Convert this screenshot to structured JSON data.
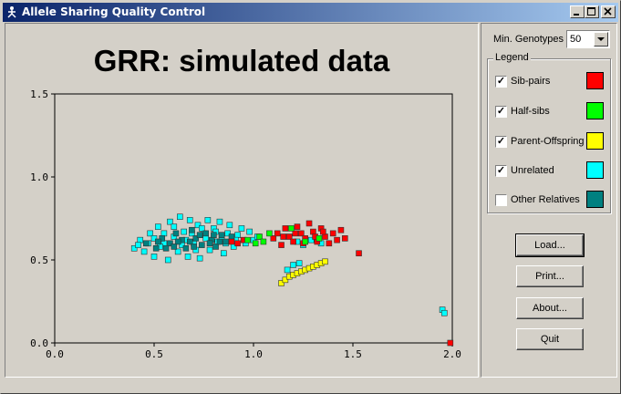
{
  "window": {
    "title": "Allele Sharing Quality Control"
  },
  "controls": {
    "min_genotypes_label": "Min. Genotypes",
    "min_genotypes_value": "50"
  },
  "legend": {
    "title": "Legend",
    "items": [
      {
        "label": "Sib-pairs",
        "checked": true,
        "color": "#ff0000"
      },
      {
        "label": "Half-sibs",
        "checked": true,
        "color": "#00ff00"
      },
      {
        "label": "Parent-Offspring",
        "checked": true,
        "color": "#ffff00"
      },
      {
        "label": "Unrelated",
        "checked": true,
        "color": "#00ffff"
      },
      {
        "label": "Other Relatives",
        "checked": false,
        "color": "#008080"
      }
    ]
  },
  "buttons": {
    "load": "Load...",
    "print": "Print...",
    "about": "About...",
    "quit": "Quit"
  },
  "chart_data": {
    "type": "scatter",
    "title": "GRR: simulated data",
    "xlabel": "",
    "ylabel": "",
    "xlim": [
      0,
      2.0
    ],
    "ylim": [
      0,
      1.5
    ],
    "xticks": [
      "0.0",
      "0.5",
      "1.0",
      "1.5",
      "2.0"
    ],
    "yticks": [
      "0.0",
      "0.5",
      "1.0",
      "1.5"
    ],
    "grid": false,
    "series": [
      {
        "name": "Unrelated",
        "color": "#00ffff",
        "points": [
          [
            0.4,
            0.57
          ],
          [
            0.43,
            0.62
          ],
          [
            0.45,
            0.55
          ],
          [
            0.48,
            0.66
          ],
          [
            0.5,
            0.52
          ],
          [
            0.52,
            0.7
          ],
          [
            0.55,
            0.6
          ],
          [
            0.57,
            0.5
          ],
          [
            0.58,
            0.73
          ],
          [
            0.6,
            0.64
          ],
          [
            0.62,
            0.55
          ],
          [
            0.63,
            0.76
          ],
          [
            0.65,
            0.67
          ],
          [
            0.67,
            0.52
          ],
          [
            0.68,
            0.74
          ],
          [
            0.7,
            0.6
          ],
          [
            0.72,
            0.71
          ],
          [
            0.73,
            0.51
          ],
          [
            0.75,
            0.66
          ],
          [
            0.77,
            0.74
          ],
          [
            0.78,
            0.56
          ],
          [
            0.8,
            0.69
          ],
          [
            0.82,
            0.61
          ],
          [
            0.83,
            0.73
          ],
          [
            0.85,
            0.54
          ],
          [
            0.87,
            0.66
          ],
          [
            0.88,
            0.71
          ],
          [
            0.9,
            0.58
          ],
          [
            0.92,
            0.65
          ],
          [
            0.94,
            0.69
          ],
          [
            0.96,
            0.6
          ],
          [
            0.98,
            0.67
          ],
          [
            1.0,
            0.62
          ],
          [
            1.02,
            0.64
          ],
          [
            0.47,
            0.6
          ],
          [
            0.53,
            0.58
          ],
          [
            0.6,
            0.7
          ],
          [
            0.66,
            0.62
          ],
          [
            0.71,
            0.56
          ],
          [
            0.76,
            0.63
          ],
          [
            0.81,
            0.67
          ],
          [
            0.86,
            0.6
          ],
          [
            0.91,
            0.62
          ],
          [
            0.55,
            0.66
          ],
          [
            0.64,
            0.59
          ],
          [
            0.74,
            0.69
          ],
          [
            0.84,
            0.63
          ],
          [
            0.42,
            0.59
          ],
          [
            0.5,
            0.63
          ],
          [
            0.69,
            0.66
          ],
          [
            1.22,
            0.61
          ],
          [
            1.25,
            0.59
          ],
          [
            1.29,
            0.62
          ],
          [
            1.34,
            0.6
          ],
          [
            1.2,
            0.47
          ],
          [
            1.17,
            0.44
          ],
          [
            1.23,
            0.48
          ],
          [
            1.95,
            0.2
          ],
          [
            1.96,
            0.18
          ]
        ]
      },
      {
        "name": "Other Relatives",
        "color": "#008080",
        "points": [
          [
            0.46,
            0.6
          ],
          [
            0.51,
            0.57
          ],
          [
            0.54,
            0.63
          ],
          [
            0.58,
            0.6
          ],
          [
            0.61,
            0.66
          ],
          [
            0.64,
            0.62
          ],
          [
            0.66,
            0.57
          ],
          [
            0.69,
            0.68
          ],
          [
            0.71,
            0.63
          ],
          [
            0.74,
            0.59
          ],
          [
            0.76,
            0.66
          ],
          [
            0.79,
            0.62
          ],
          [
            0.81,
            0.58
          ],
          [
            0.84,
            0.65
          ],
          [
            0.86,
            0.61
          ],
          [
            0.89,
            0.64
          ],
          [
            0.56,
            0.57
          ],
          [
            0.62,
            0.61
          ],
          [
            0.68,
            0.61
          ],
          [
            0.73,
            0.65
          ],
          [
            0.78,
            0.6
          ],
          [
            0.83,
            0.61
          ],
          [
            0.52,
            0.61
          ],
          [
            0.6,
            0.58
          ],
          [
            0.7,
            0.58
          ],
          [
            0.8,
            0.65
          ]
        ]
      },
      {
        "name": "Sib-pairs",
        "color": "#ff0000",
        "points": [
          [
            0.89,
            0.61
          ],
          [
            0.92,
            0.6
          ],
          [
            0.95,
            0.62
          ],
          [
            1.1,
            0.63
          ],
          [
            1.12,
            0.66
          ],
          [
            1.14,
            0.59
          ],
          [
            1.16,
            0.69
          ],
          [
            1.18,
            0.64
          ],
          [
            1.2,
            0.61
          ],
          [
            1.22,
            0.7
          ],
          [
            1.24,
            0.66
          ],
          [
            1.26,
            0.63
          ],
          [
            1.28,
            0.72
          ],
          [
            1.3,
            0.67
          ],
          [
            1.32,
            0.61
          ],
          [
            1.34,
            0.69
          ],
          [
            1.36,
            0.64
          ],
          [
            1.38,
            0.6
          ],
          [
            1.4,
            0.66
          ],
          [
            1.42,
            0.62
          ],
          [
            1.44,
            0.68
          ],
          [
            1.46,
            0.63
          ],
          [
            1.15,
            0.64
          ],
          [
            1.25,
            0.6
          ],
          [
            1.35,
            0.67
          ],
          [
            1.21,
            0.66
          ],
          [
            1.31,
            0.64
          ],
          [
            1.53,
            0.54
          ],
          [
            1.99,
            0.0
          ]
        ]
      },
      {
        "name": "Half-sibs",
        "color": "#00ff00",
        "points": [
          [
            0.97,
            0.62
          ],
          [
            1.01,
            0.6
          ],
          [
            1.03,
            0.64
          ],
          [
            1.05,
            0.61
          ],
          [
            1.08,
            0.66
          ],
          [
            1.19,
            0.69
          ],
          [
            1.26,
            0.61
          ],
          [
            1.33,
            0.63
          ]
        ]
      },
      {
        "name": "Parent-Offspring",
        "color": "#ffff00",
        "points": [
          [
            1.14,
            0.36
          ],
          [
            1.16,
            0.38
          ],
          [
            1.18,
            0.4
          ],
          [
            1.2,
            0.41
          ],
          [
            1.22,
            0.42
          ],
          [
            1.24,
            0.43
          ],
          [
            1.26,
            0.44
          ],
          [
            1.28,
            0.45
          ],
          [
            1.3,
            0.46
          ],
          [
            1.32,
            0.47
          ],
          [
            1.34,
            0.48
          ],
          [
            1.36,
            0.49
          ]
        ]
      }
    ]
  }
}
